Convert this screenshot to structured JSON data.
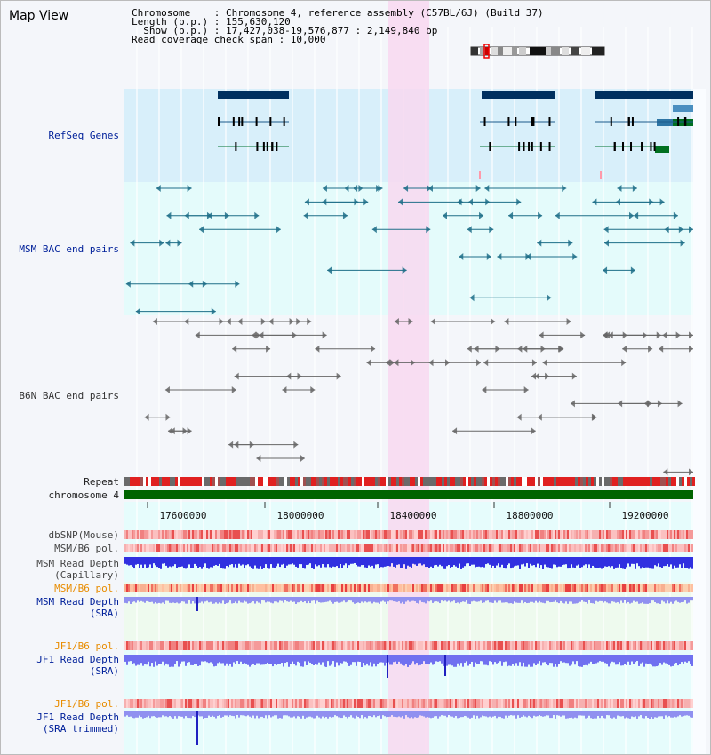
{
  "app": {
    "title": "Map View"
  },
  "info": {
    "chromosome_line": "Chromosome    : Chromosome 4, reference assembly (C57BL/6J) (Build 37)",
    "length_line": "Length (b.p.) : 155,630,120",
    "show_line": "  Show (b.p.) : 17,427,038-19,576,877 : 2,149,840 bp",
    "coverage_line": "Read coverage check span : 10,000"
  },
  "tracks": {
    "refseq": "RefSeq Genes",
    "msm_bac": "MSM BAC end pairs",
    "b6n_bac": "B6N BAC end pairs",
    "repeat": "Repeat",
    "chromosome": "chromosome 4",
    "dbsnp": "dbSNP(Mouse)",
    "msm_b6_pol_1": "MSM/B6 pol.",
    "msm_depth_cap": "MSM Read Depth\n(Capillary)",
    "msm_b6_pol_2": "MSM/B6 pol.",
    "msm_depth_sra": "MSM Read Depth\n(SRA)",
    "jf1_b6_pol_1": "JF1/B6 pol.",
    "jf1_depth_sra": "JF1 Read Depth\n(SRA)",
    "jf1_b6_pol_2": "JF1/B6 pol.",
    "jf1_depth_trim": "JF1 Read Depth\n(SRA trimmed)"
  },
  "axis": {
    "ticks": [
      "17600000",
      "18000000",
      "18400000",
      "18800000",
      "19200000"
    ]
  },
  "colors": {
    "highlight": "#f8d8f0",
    "refseq_bg": "#d8effa",
    "msm_bg": "#e4fbfb",
    "gene": "#00305f",
    "msm_feature": "#1e6e88",
    "b6n_feature": "#666666",
    "chromosome_bar": "#006400"
  }
}
